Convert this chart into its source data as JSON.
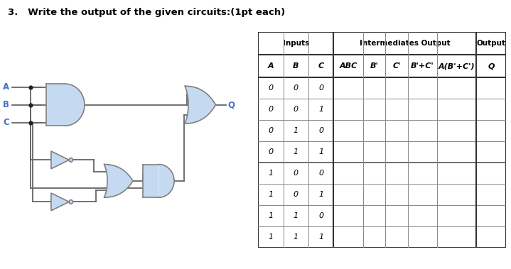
{
  "title": "3.   Write the output of the given circuits:(1pt each)",
  "title_fontsize": 9.5,
  "col_headers_row2": [
    "A",
    "B",
    "C",
    "ABC",
    "B'",
    "C'",
    "B'+C'",
    "A(B'+C')",
    "Q"
  ],
  "input_data": [
    [
      0,
      0,
      0
    ],
    [
      0,
      0,
      1
    ],
    [
      0,
      1,
      0
    ],
    [
      0,
      1,
      1
    ],
    [
      1,
      0,
      0
    ],
    [
      1,
      0,
      1
    ],
    [
      1,
      1,
      0
    ],
    [
      1,
      1,
      1
    ]
  ],
  "bg_color": "#ffffff",
  "line_color": "#666666",
  "thick_line_color": "#222222",
  "text_color": "#000000",
  "gate_fill": "#c5d9f1",
  "gate_edge": "#808080",
  "input_label_color": "#4472c4",
  "output_label_color": "#4472c4"
}
